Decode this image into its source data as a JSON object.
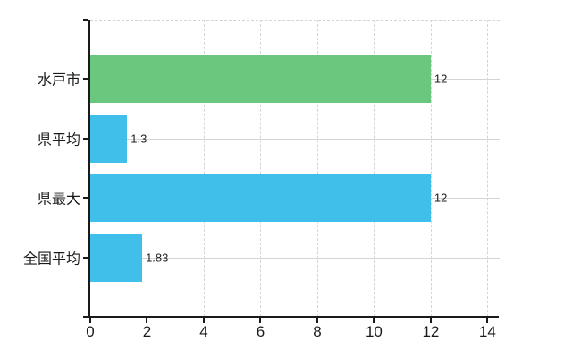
{
  "chart_data": {
    "type": "bar",
    "orientation": "horizontal",
    "title": "",
    "xlabel": "",
    "ylabel": "",
    "categories": [
      "水戸市",
      "県平均",
      "県最大",
      "全国平均"
    ],
    "values": [
      12,
      1.3,
      12,
      1.83
    ],
    "value_labels": [
      "12",
      "1.3",
      "12",
      "1.83"
    ],
    "bar_colors": [
      "#69C87D",
      "#3FBFEA",
      "#3FBFEA",
      "#3FBFEA"
    ],
    "x_tick_values": [
      0,
      2,
      4,
      6,
      8,
      10,
      12,
      14
    ],
    "x_tick_labels": [
      "0",
      "2",
      "4",
      "6",
      "8",
      "10",
      "12",
      "14"
    ],
    "xlim": [
      0,
      14
    ],
    "grid": "on",
    "legend": "none",
    "colors": {
      "green_bar": "#69C87D",
      "blue_bar": "#3FBFEA",
      "gridline": "#D4D4D4",
      "axis": "#1A1A1A",
      "text": "#1A1A1A",
      "background": "#FFFFFF"
    }
  }
}
